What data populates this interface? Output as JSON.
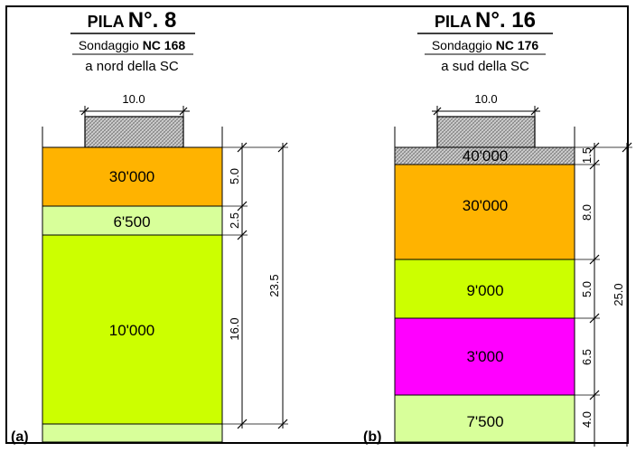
{
  "panels": [
    {
      "title_small": "PILA",
      "title_num": "N°. 8",
      "sondaggio_prefix": "Sondaggio ",
      "sondaggio_code": "NC 168",
      "location": "a nord della SC",
      "cap_width": "10.0",
      "panel_label": "(a)",
      "total_dim": "23.5",
      "layers": [
        {
          "value": "30'000",
          "thickness": "5.0",
          "color": "#FFB300"
        },
        {
          "value": "6'500",
          "thickness": "2.5",
          "color": "#D8FF9A"
        },
        {
          "value": "10'000",
          "thickness": "16.0",
          "color": "#CCFF00"
        }
      ],
      "bottom_color": "#D8FF9A"
    },
    {
      "title_small": "PILA",
      "title_num": "N°. 16",
      "sondaggio_prefix": "Sondaggio ",
      "sondaggio_code": "NC 176",
      "location": "a sud della SC",
      "cap_width": "10.0",
      "panel_label": "(b)",
      "total_dim": "25.0",
      "layers": [
        {
          "value": "40'000",
          "thickness": "1.5",
          "color": "#BDBDBD"
        },
        {
          "value": "30'000",
          "thickness": "8.0",
          "color": "#FFB300"
        },
        {
          "value": "9'000",
          "thickness": "5.0",
          "color": "#CCFF00"
        },
        {
          "value": "3'000",
          "thickness": "6.5",
          "color": "#FF00FF"
        },
        {
          "value": "7'500",
          "thickness": "4.0",
          "color": "#D8FF9A"
        }
      ]
    }
  ]
}
